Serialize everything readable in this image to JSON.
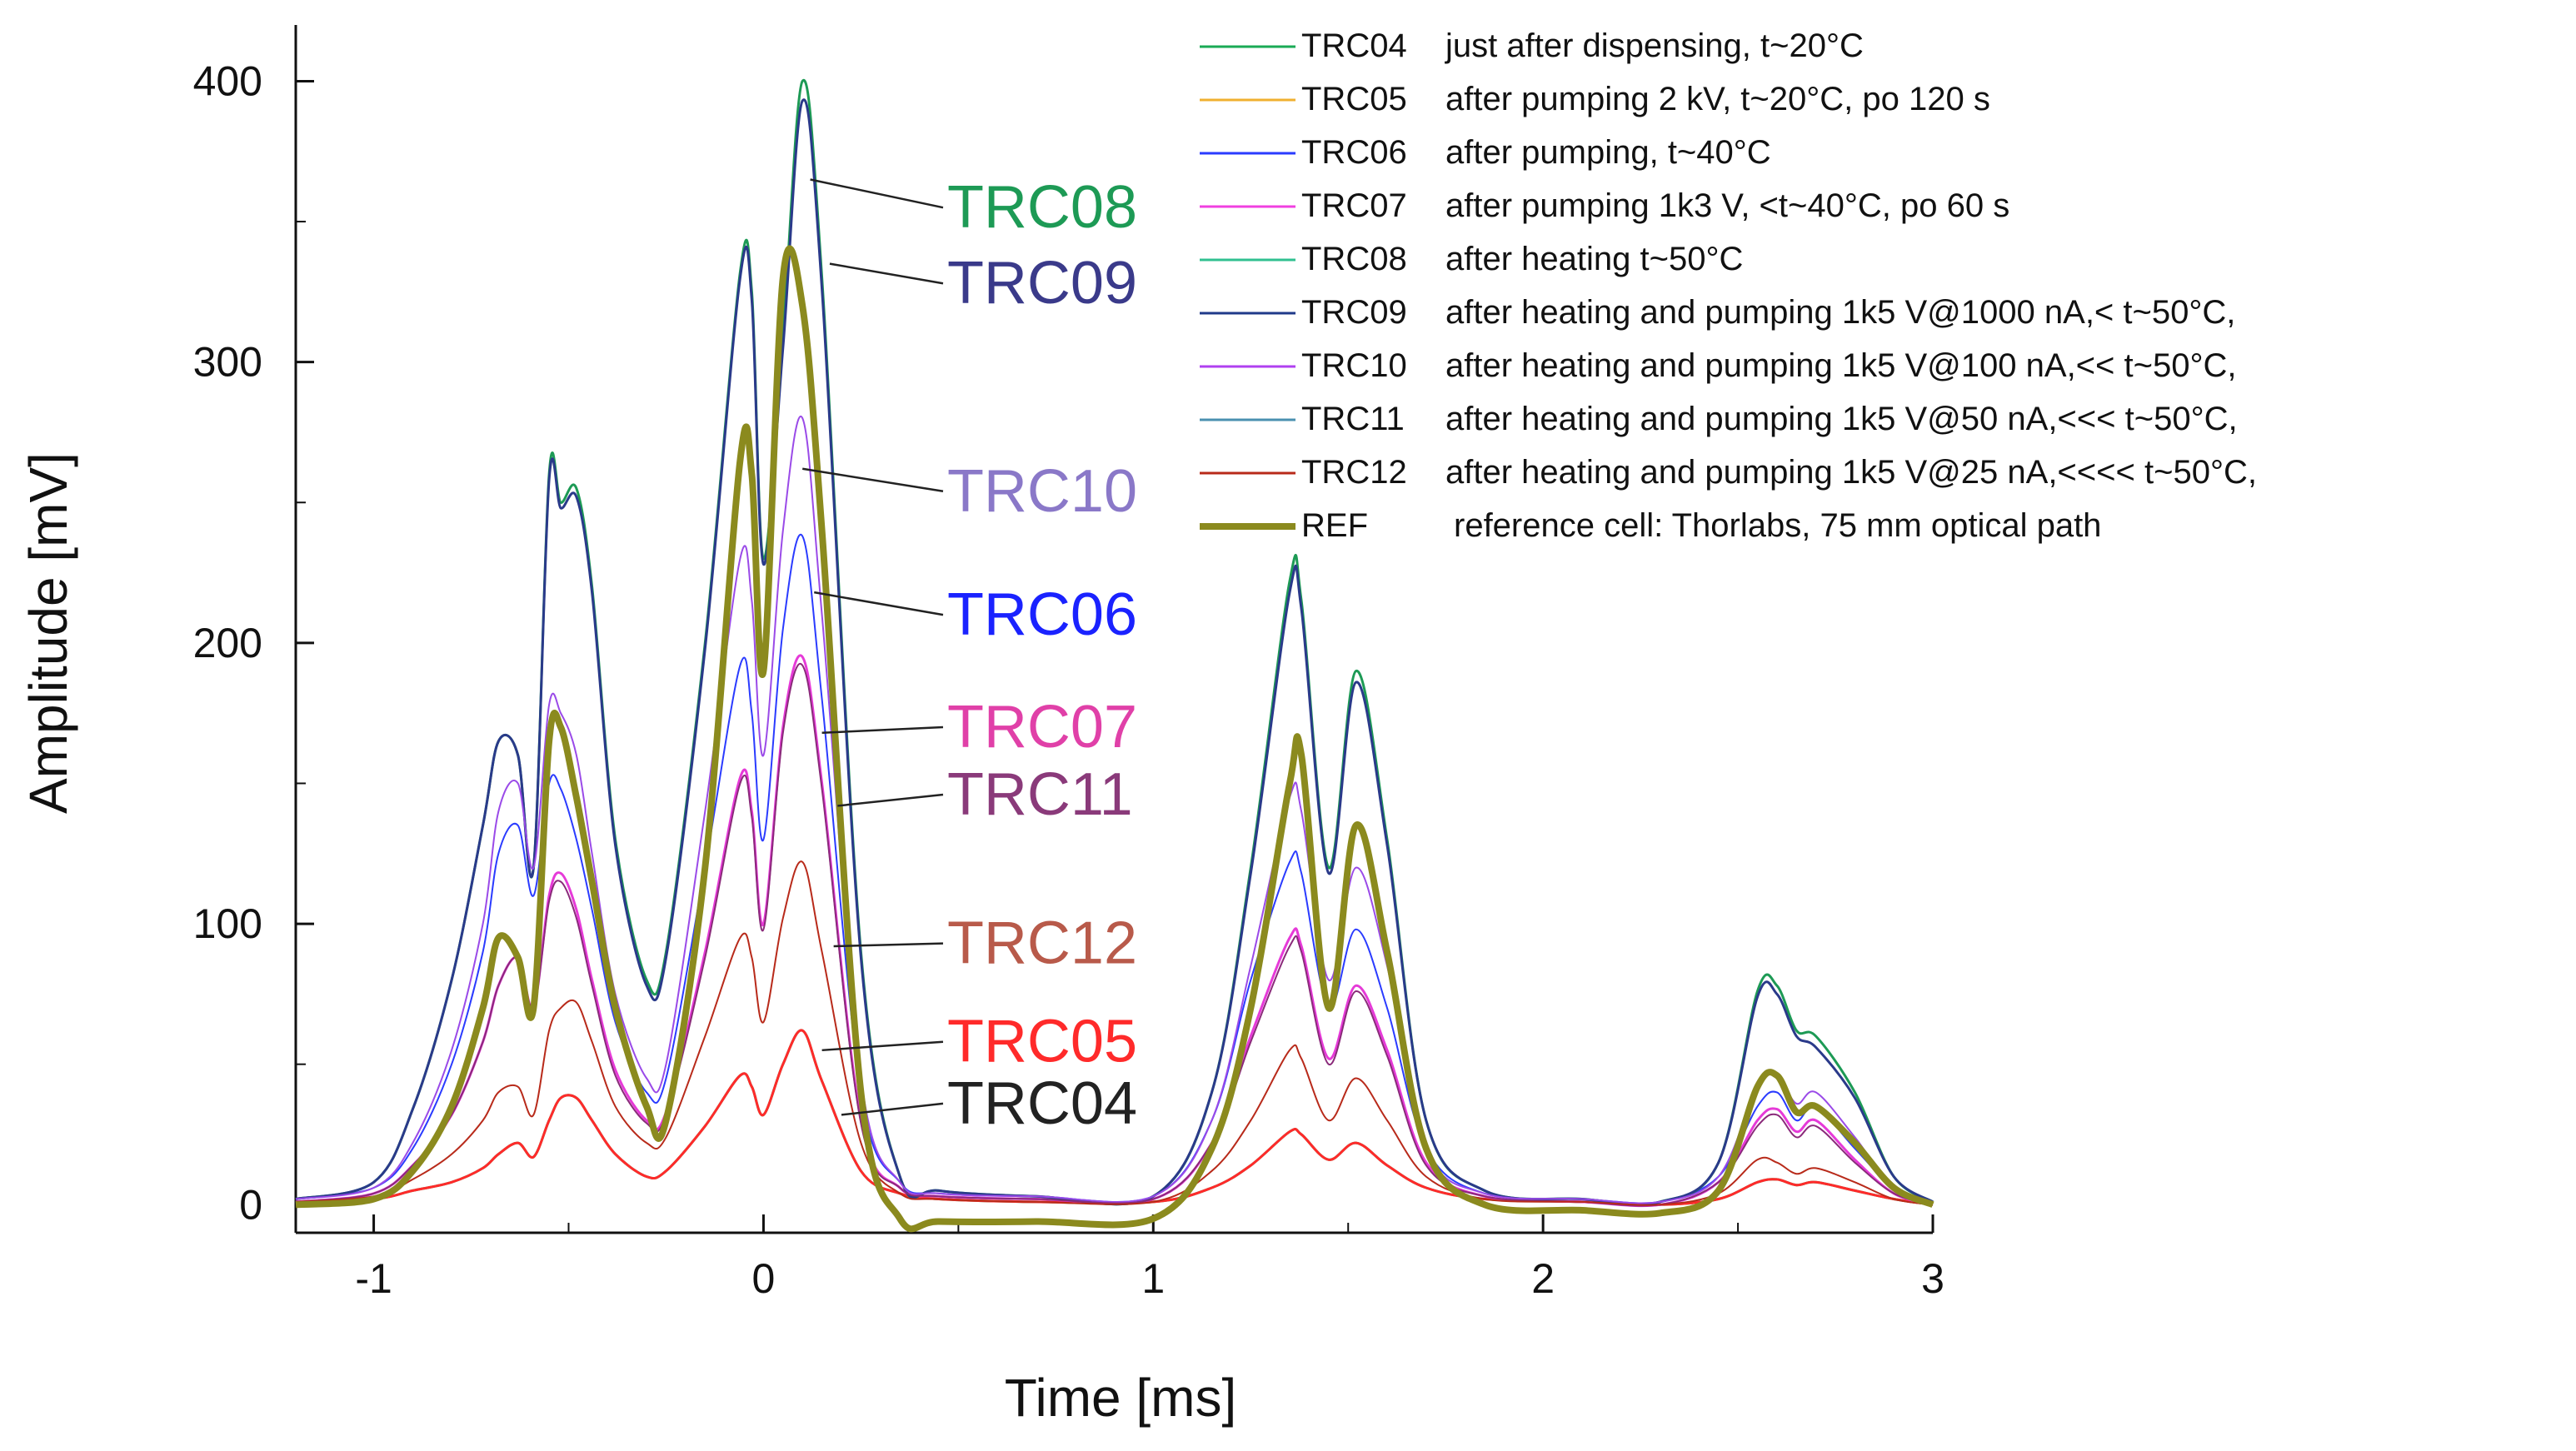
{
  "chart_data": {
    "type": "line",
    "title": "",
    "xlabel": "Time [ms]",
    "ylabel": "Amplitude [mV]",
    "xlim": [
      -1.2,
      3.0
    ],
    "ylim": [
      -10,
      420
    ],
    "xticks": [
      -1,
      0,
      1,
      2,
      3
    ],
    "xtick_labels": [
      "-1",
      "0",
      "1",
      "2",
      "3"
    ],
    "yticks": [
      0,
      100,
      200,
      300,
      400
    ],
    "ytick_labels": [
      "0",
      "100",
      "200",
      "300",
      "400"
    ],
    "grid": false,
    "legend_position": "top-right",
    "x": [
      -1.2,
      -1.0,
      -0.9,
      -0.8,
      -0.72,
      -0.68,
      -0.63,
      -0.59,
      -0.55,
      -0.52,
      -0.48,
      -0.44,
      -0.38,
      -0.3,
      -0.25,
      -0.15,
      -0.06,
      -0.03,
      0.0,
      0.05,
      0.1,
      0.15,
      0.25,
      0.35,
      0.45,
      0.7,
      1.0,
      1.15,
      1.25,
      1.35,
      1.38,
      1.45,
      1.52,
      1.6,
      1.7,
      1.85,
      2.1,
      2.3,
      2.45,
      2.55,
      2.6,
      2.65,
      2.7,
      2.8,
      2.9,
      3.0
    ],
    "series": [
      {
        "name": "TRC04",
        "color": "#1aaa55",
        "width": 3,
        "values": [
          1,
          2,
          5,
          8,
          13,
          18,
          22,
          17,
          30,
          38,
          38,
          30,
          18,
          10,
          12,
          28,
          46,
          42,
          32,
          50,
          62,
          44,
          12,
          4,
          2,
          1,
          1,
          6,
          14,
          26,
          25,
          16,
          22,
          14,
          6,
          2,
          1,
          0,
          2,
          8,
          9,
          7,
          8,
          5,
          2,
          0
        ]
      },
      {
        "name": "TRC05",
        "color": "#ff2a2a",
        "width": 3,
        "values": [
          1,
          2,
          5,
          8,
          13,
          18,
          22,
          17,
          30,
          38,
          38,
          30,
          18,
          10,
          12,
          28,
          46,
          42,
          32,
          50,
          62,
          44,
          12,
          4,
          2,
          1,
          1,
          6,
          14,
          26,
          25,
          16,
          22,
          14,
          6,
          2,
          1,
          0,
          2,
          8,
          9,
          7,
          8,
          5,
          2,
          0
        ]
      },
      {
        "name": "TRC06",
        "color": "#2a3bff",
        "width": 2,
        "values": [
          2,
          6,
          20,
          50,
          90,
          125,
          135,
          110,
          150,
          148,
          130,
          105,
          65,
          40,
          45,
          120,
          192,
          175,
          130,
          205,
          238,
          180,
          40,
          8,
          4,
          3,
          3,
          30,
          80,
          122,
          118,
          70,
          98,
          70,
          20,
          4,
          2,
          1,
          10,
          35,
          40,
          30,
          35,
          20,
          6,
          1
        ]
      },
      {
        "name": "TRC07",
        "color": "#e63ad8",
        "width": 3,
        "values": [
          1,
          4,
          14,
          32,
          58,
          78,
          88,
          70,
          110,
          118,
          105,
          80,
          48,
          30,
          33,
          90,
          152,
          140,
          100,
          170,
          195,
          150,
          30,
          6,
          3,
          2,
          2,
          22,
          60,
          95,
          92,
          52,
          78,
          55,
          15,
          3,
          1,
          0,
          8,
          30,
          34,
          26,
          30,
          16,
          4,
          0
        ]
      },
      {
        "name": "TRC08",
        "color": "#1d9a55",
        "width": 3,
        "values": [
          2,
          8,
          34,
          80,
          135,
          165,
          160,
          120,
          260,
          250,
          255,
          220,
          130,
          80,
          90,
          200,
          332,
          325,
          230,
          310,
          400,
          330,
          90,
          10,
          5,
          3,
          3,
          40,
          120,
          222,
          215,
          120,
          190,
          130,
          30,
          5,
          2,
          1,
          15,
          76,
          78,
          62,
          60,
          40,
          10,
          1
        ]
      },
      {
        "name": "TRC09",
        "color": "#2a3a8a",
        "width": 3,
        "values": [
          2,
          8,
          34,
          80,
          135,
          165,
          160,
          120,
          258,
          248,
          252,
          218,
          128,
          78,
          88,
          198,
          330,
          322,
          228,
          305,
          393,
          326,
          88,
          10,
          5,
          3,
          3,
          40,
          118,
          218,
          212,
          118,
          186,
          128,
          30,
          5,
          2,
          1,
          15,
          74,
          75,
          60,
          56,
          38,
          10,
          1
        ]
      },
      {
        "name": "TRC10",
        "color": "#9a4ae8",
        "width": 2,
        "values": [
          2,
          6,
          22,
          55,
          100,
          140,
          150,
          120,
          178,
          175,
          160,
          125,
          75,
          45,
          50,
          140,
          230,
          215,
          160,
          240,
          280,
          210,
          45,
          8,
          4,
          3,
          3,
          30,
          85,
          145,
          140,
          80,
          120,
          85,
          20,
          4,
          2,
          1,
          10,
          42,
          46,
          36,
          40,
          24,
          6,
          1
        ]
      },
      {
        "name": "TRC11",
        "color": "#8a2a7a",
        "width": 2,
        "values": [
          1,
          4,
          14,
          32,
          58,
          78,
          88,
          70,
          108,
          115,
          102,
          78,
          46,
          29,
          32,
          88,
          150,
          138,
          98,
          168,
          192,
          148,
          29,
          6,
          3,
          2,
          2,
          22,
          58,
          92,
          90,
          50,
          76,
          53,
          14,
          3,
          1,
          0,
          8,
          28,
          32,
          24,
          28,
          15,
          4,
          0
        ]
      },
      {
        "name": "TRC12",
        "color": "#b82a1a",
        "width": 2,
        "values": [
          1,
          3,
          9,
          18,
          30,
          40,
          42,
          32,
          62,
          70,
          72,
          58,
          35,
          22,
          24,
          60,
          95,
          88,
          65,
          102,
          122,
          90,
          22,
          4,
          2,
          1,
          1,
          12,
          30,
          55,
          52,
          30,
          45,
          30,
          10,
          2,
          1,
          0,
          4,
          16,
          15,
          11,
          13,
          8,
          2,
          0
        ]
      },
      {
        "name": "REF",
        "color": "#8b8a1e",
        "width": 8,
        "values": [
          0,
          2,
          12,
          35,
          70,
          95,
          88,
          70,
          165,
          170,
          145,
          115,
          70,
          35,
          30,
          120,
          265,
          260,
          190,
          330,
          320,
          240,
          40,
          -5,
          -6,
          -6,
          -5,
          20,
          70,
          150,
          160,
          70,
          135,
          90,
          20,
          0,
          -2,
          -3,
          5,
          42,
          46,
          33,
          35,
          22,
          6,
          0
        ]
      }
    ],
    "legend": [
      {
        "code": "TRC04",
        "desc": "just after dispensing, t~20°C",
        "color": "#1aaa55"
      },
      {
        "code": "TRC05",
        "desc": "after pumping 2 kV, t~20°C, po 120 s",
        "color": "#f0b030"
      },
      {
        "code": "TRC06",
        "desc": "after pumping, t~40°C",
        "color": "#2a3bff"
      },
      {
        "code": "TRC07",
        "desc": "after pumping 1k3 V, <t~40°C, po 60 s",
        "color": "#f040e0"
      },
      {
        "code": "TRC08",
        "desc": "after heating t~50°C",
        "color": "#30c090"
      },
      {
        "code": "TRC09",
        "desc": "after heating and pumping 1k5 V@1000 nA,< t~50°C,",
        "color": "#1f3a8a"
      },
      {
        "code": "TRC10",
        "desc": "after heating and pumping 1k5 V@100 nA,<< t~50°C,",
        "color": "#b040f0"
      },
      {
        "code": "TRC11",
        "desc": "after heating and pumping 1k5 V@50 nA,<<< t~50°C,",
        "color": "#4a90b0"
      },
      {
        "code": "TRC12",
        "desc": "after heating and pumping 1k5 V@25 nA,<<<< t~50°C,",
        "color": "#b82a1a"
      },
      {
        "code": "REF",
        "desc": "reference cell: Thorlabs, 75 mm optical path",
        "color": "#8b8a1e"
      }
    ],
    "callouts": [
      {
        "label": "TRC08",
        "color": "#1d9a55",
        "point": [
          0.12,
          365
        ],
        "text_at": [
          0.45,
          355
        ]
      },
      {
        "label": "TRC09",
        "color": "#3a3a8a",
        "point": [
          0.17,
          335
        ],
        "text_at": [
          0.45,
          328
        ]
      },
      {
        "label": "TRC10",
        "color": "#8a78c8",
        "point": [
          0.1,
          262
        ],
        "text_at": [
          0.45,
          254
        ]
      },
      {
        "label": "TRC06",
        "color": "#1a22ff",
        "point": [
          0.13,
          218
        ],
        "text_at": [
          0.45,
          210
        ]
      },
      {
        "label": "TRC07",
        "color": "#e040a8",
        "point": [
          0.15,
          168
        ],
        "text_at": [
          0.45,
          170
        ]
      },
      {
        "label": "TRC11",
        "color": "#8a3a7a",
        "point": [
          0.19,
          142
        ],
        "text_at": [
          0.45,
          146
        ]
      },
      {
        "label": "TRC12",
        "color": "#b85a4a",
        "point": [
          0.18,
          92
        ],
        "text_at": [
          0.45,
          93
        ]
      },
      {
        "label": "TRC05",
        "color": "#ff2a2a",
        "point": [
          0.15,
          55
        ],
        "text_at": [
          0.45,
          58
        ]
      },
      {
        "label": "TRC04",
        "color": "#222222",
        "point": [
          0.2,
          32
        ],
        "text_at": [
          0.45,
          36
        ]
      }
    ]
  }
}
